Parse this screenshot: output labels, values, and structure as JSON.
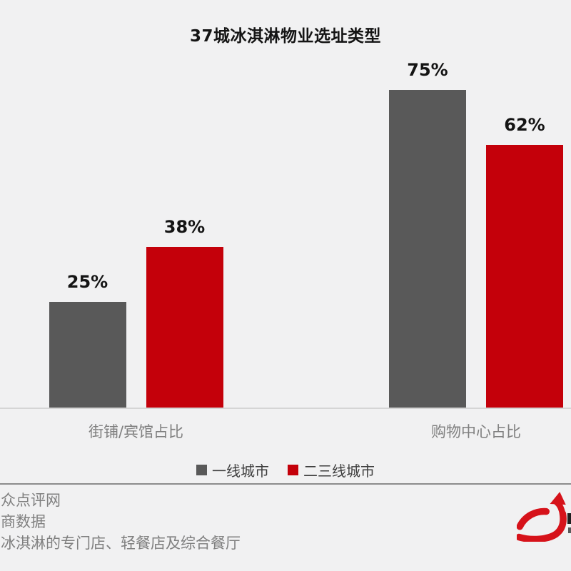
{
  "page": {
    "background_color": "#F1F1F2",
    "bar_gray": "#595959",
    "bar_red": "#C4000A",
    "logo_red": "#D6121A"
  },
  "chart_data": {
    "type": "bar",
    "title": "37城冰淇淋物业选址类型",
    "categories": [
      "街铺/宾馆占比",
      "购物中心占比"
    ],
    "series": [
      {
        "name": "一线城市",
        "color": "#595959",
        "values": [
          25,
          75
        ]
      },
      {
        "name": "二三线城市",
        "color": "#C4000A",
        "values": [
          38,
          62
        ]
      }
    ],
    "value_suffix": "%",
    "data_labels": [
      [
        "25%",
        "75%"
      ],
      [
        "38%",
        "62%"
      ]
    ],
    "ylim": [
      0,
      80
    ],
    "xlabel": "",
    "ylabel": "",
    "grid": false,
    "legend_position": "bottom"
  },
  "footer": {
    "lines": [
      "众点评网",
      "商数据",
      "冰淇淋的专门店、轻餐店及综合餐厅"
    ]
  },
  "logo": {
    "icon": "dt-arrow-logo",
    "color": "#D6121A"
  }
}
